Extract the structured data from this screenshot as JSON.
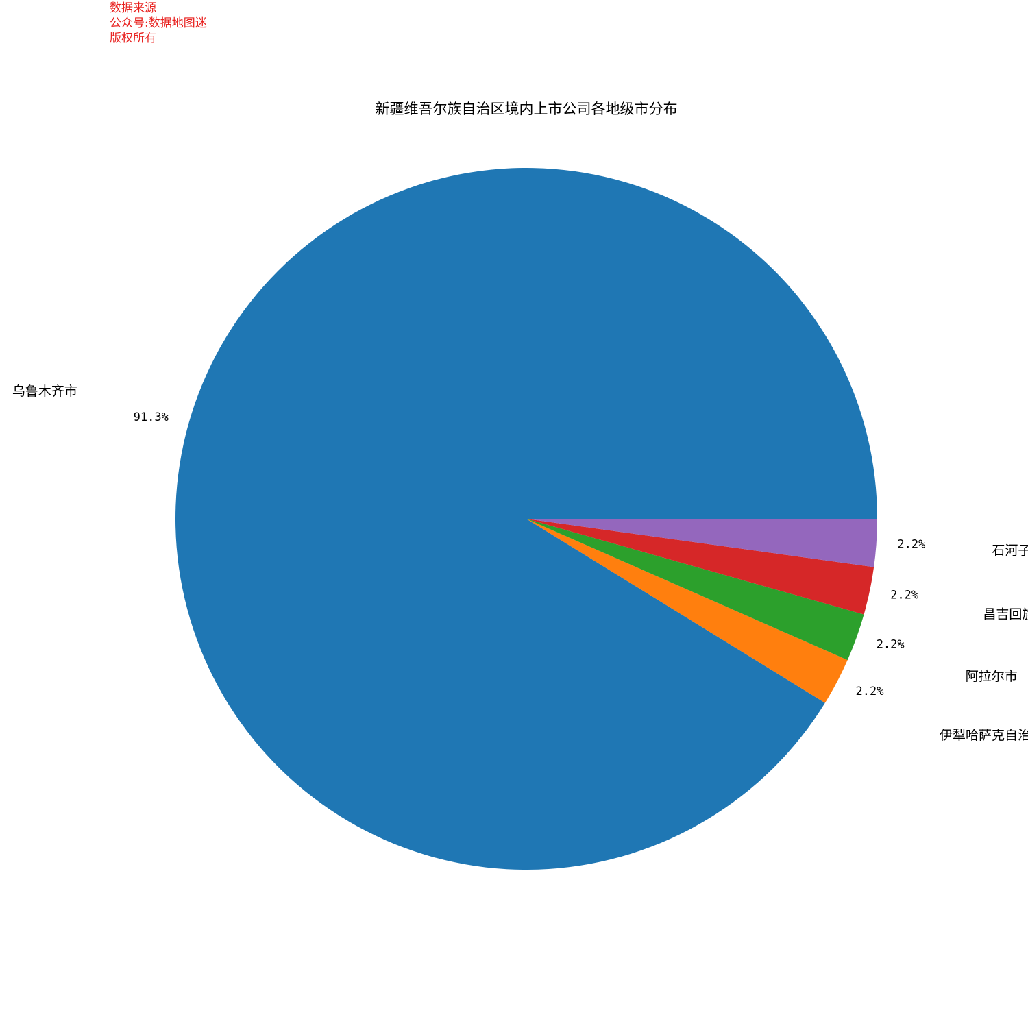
{
  "watermark": [
    "数据来源",
    "公众号:数据地图迷",
    "版权所有"
  ],
  "chart_data": {
    "type": "pie",
    "title": "新疆维吾尔族自治区境内上市公司各地级市分布",
    "start_angle_deg": 0,
    "direction": "counterclockwise",
    "slices": [
      {
        "label": "乌鲁木齐市",
        "value": 91.3,
        "pct_label": "91.3%",
        "color": "#1f77b4"
      },
      {
        "label": "伊犁哈萨克自治州",
        "value": 2.2,
        "pct_label": "2.2%",
        "color": "#ff7f0e"
      },
      {
        "label": "阿拉尔市",
        "value": 2.2,
        "pct_label": "2.2%",
        "color": "#2ca02c"
      },
      {
        "label": "昌吉回族自",
        "value": 2.2,
        "pct_label": "2.2%",
        "color": "#d62728"
      },
      {
        "label": "石河子市",
        "value": 2.2,
        "pct_label": "2.2%",
        "color": "#9467bd"
      }
    ]
  }
}
